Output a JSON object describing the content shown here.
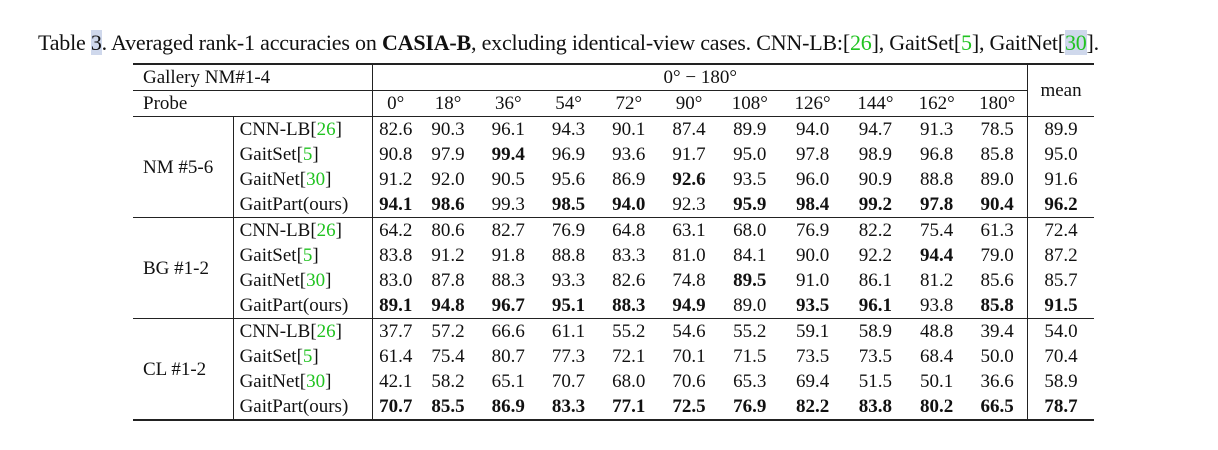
{
  "caption": {
    "label": "Table ",
    "number": "3",
    "text1": ". Averaged rank-1 accuracies on ",
    "dataset": "CASIA-B",
    "text2": ", excluding identical-view cases. CNN-LB:[",
    "ref1": "26",
    "text3": "], GaitSet[",
    "ref2": "5",
    "text4": "], GaitNet[",
    "ref3": "30",
    "text5": "]."
  },
  "table": {
    "gallery_label": "Gallery NM#1-4",
    "range_label": "0° − 180°",
    "probe_label": "Probe",
    "mean_label": "mean",
    "angles": [
      "0°",
      "18°",
      "36°",
      "54°",
      "72°",
      "90°",
      "108°",
      "126°",
      "144°",
      "162°",
      "180°"
    ],
    "groups": [
      {
        "name": "NM #5-6",
        "rows": [
          {
            "method": "CNN-LB",
            "ref": "26",
            "values": [
              "82.6",
              "90.3",
              "96.1",
              "94.3",
              "90.1",
              "87.4",
              "89.9",
              "94.0",
              "94.7",
              "91.3",
              "78.5"
            ],
            "mean": "89.9",
            "bold": []
          },
          {
            "method": "GaitSet",
            "ref": "5",
            "values": [
              "90.8",
              "97.9",
              "99.4",
              "96.9",
              "93.6",
              "91.7",
              "95.0",
              "97.8",
              "98.9",
              "96.8",
              "85.8"
            ],
            "mean": "95.0",
            "bold": [
              2
            ]
          },
          {
            "method": "GaitNet",
            "ref": "30",
            "values": [
              "91.2",
              "92.0",
              "90.5",
              "95.6",
              "86.9",
              "92.6",
              "93.5",
              "96.0",
              "90.9",
              "88.8",
              "89.0"
            ],
            "mean": "91.6",
            "bold": [
              5
            ]
          },
          {
            "method": "GaitPart(ours)",
            "ref": "",
            "values": [
              "94.1",
              "98.6",
              "99.3",
              "98.5",
              "94.0",
              "92.3",
              "95.9",
              "98.4",
              "99.2",
              "97.8",
              "90.4"
            ],
            "mean": "96.2",
            "bold": [
              0,
              1,
              3,
              4,
              6,
              7,
              8,
              9,
              10,
              11
            ]
          }
        ]
      },
      {
        "name": "BG #1-2",
        "rows": [
          {
            "method": "CNN-LB",
            "ref": "26",
            "values": [
              "64.2",
              "80.6",
              "82.7",
              "76.9",
              "64.8",
              "63.1",
              "68.0",
              "76.9",
              "82.2",
              "75.4",
              "61.3"
            ],
            "mean": "72.4",
            "bold": []
          },
          {
            "method": "GaitSet",
            "ref": "5",
            "values": [
              "83.8",
              "91.2",
              "91.8",
              "88.8",
              "83.3",
              "81.0",
              "84.1",
              "90.0",
              "92.2",
              "94.4",
              "79.0"
            ],
            "mean": "87.2",
            "bold": [
              9
            ]
          },
          {
            "method": "GaitNet",
            "ref": "30",
            "values": [
              "83.0",
              "87.8",
              "88.3",
              "93.3",
              "82.6",
              "74.8",
              "89.5",
              "91.0",
              "86.1",
              "81.2",
              "85.6"
            ],
            "mean": "85.7",
            "bold": [
              6
            ]
          },
          {
            "method": "GaitPart(ours)",
            "ref": "",
            "values": [
              "89.1",
              "94.8",
              "96.7",
              "95.1",
              "88.3",
              "94.9",
              "89.0",
              "93.5",
              "96.1",
              "93.8",
              "85.8"
            ],
            "mean": "91.5",
            "bold": [
              0,
              1,
              2,
              3,
              4,
              5,
              7,
              8,
              10,
              11
            ]
          }
        ]
      },
      {
        "name": "CL #1-2",
        "rows": [
          {
            "method": "CNN-LB",
            "ref": "26",
            "values": [
              "37.7",
              "57.2",
              "66.6",
              "61.1",
              "55.2",
              "54.6",
              "55.2",
              "59.1",
              "58.9",
              "48.8",
              "39.4"
            ],
            "mean": "54.0",
            "bold": []
          },
          {
            "method": "GaitSet",
            "ref": "5",
            "values": [
              "61.4",
              "75.4",
              "80.7",
              "77.3",
              "72.1",
              "70.1",
              "71.5",
              "73.5",
              "73.5",
              "68.4",
              "50.0"
            ],
            "mean": "70.4",
            "bold": []
          },
          {
            "method": "GaitNet",
            "ref": "30",
            "values": [
              "42.1",
              "58.2",
              "65.1",
              "70.7",
              "68.0",
              "70.6",
              "65.3",
              "69.4",
              "51.5",
              "50.1",
              "36.6"
            ],
            "mean": "58.9",
            "bold": []
          },
          {
            "method": "GaitPart(ours)",
            "ref": "",
            "values": [
              "70.7",
              "85.5",
              "86.9",
              "83.3",
              "77.1",
              "72.5",
              "76.9",
              "82.2",
              "83.8",
              "80.2",
              "66.5"
            ],
            "mean": "78.7",
            "bold": [
              0,
              1,
              2,
              3,
              4,
              5,
              6,
              7,
              8,
              9,
              10,
              11
            ]
          }
        ]
      }
    ]
  }
}
